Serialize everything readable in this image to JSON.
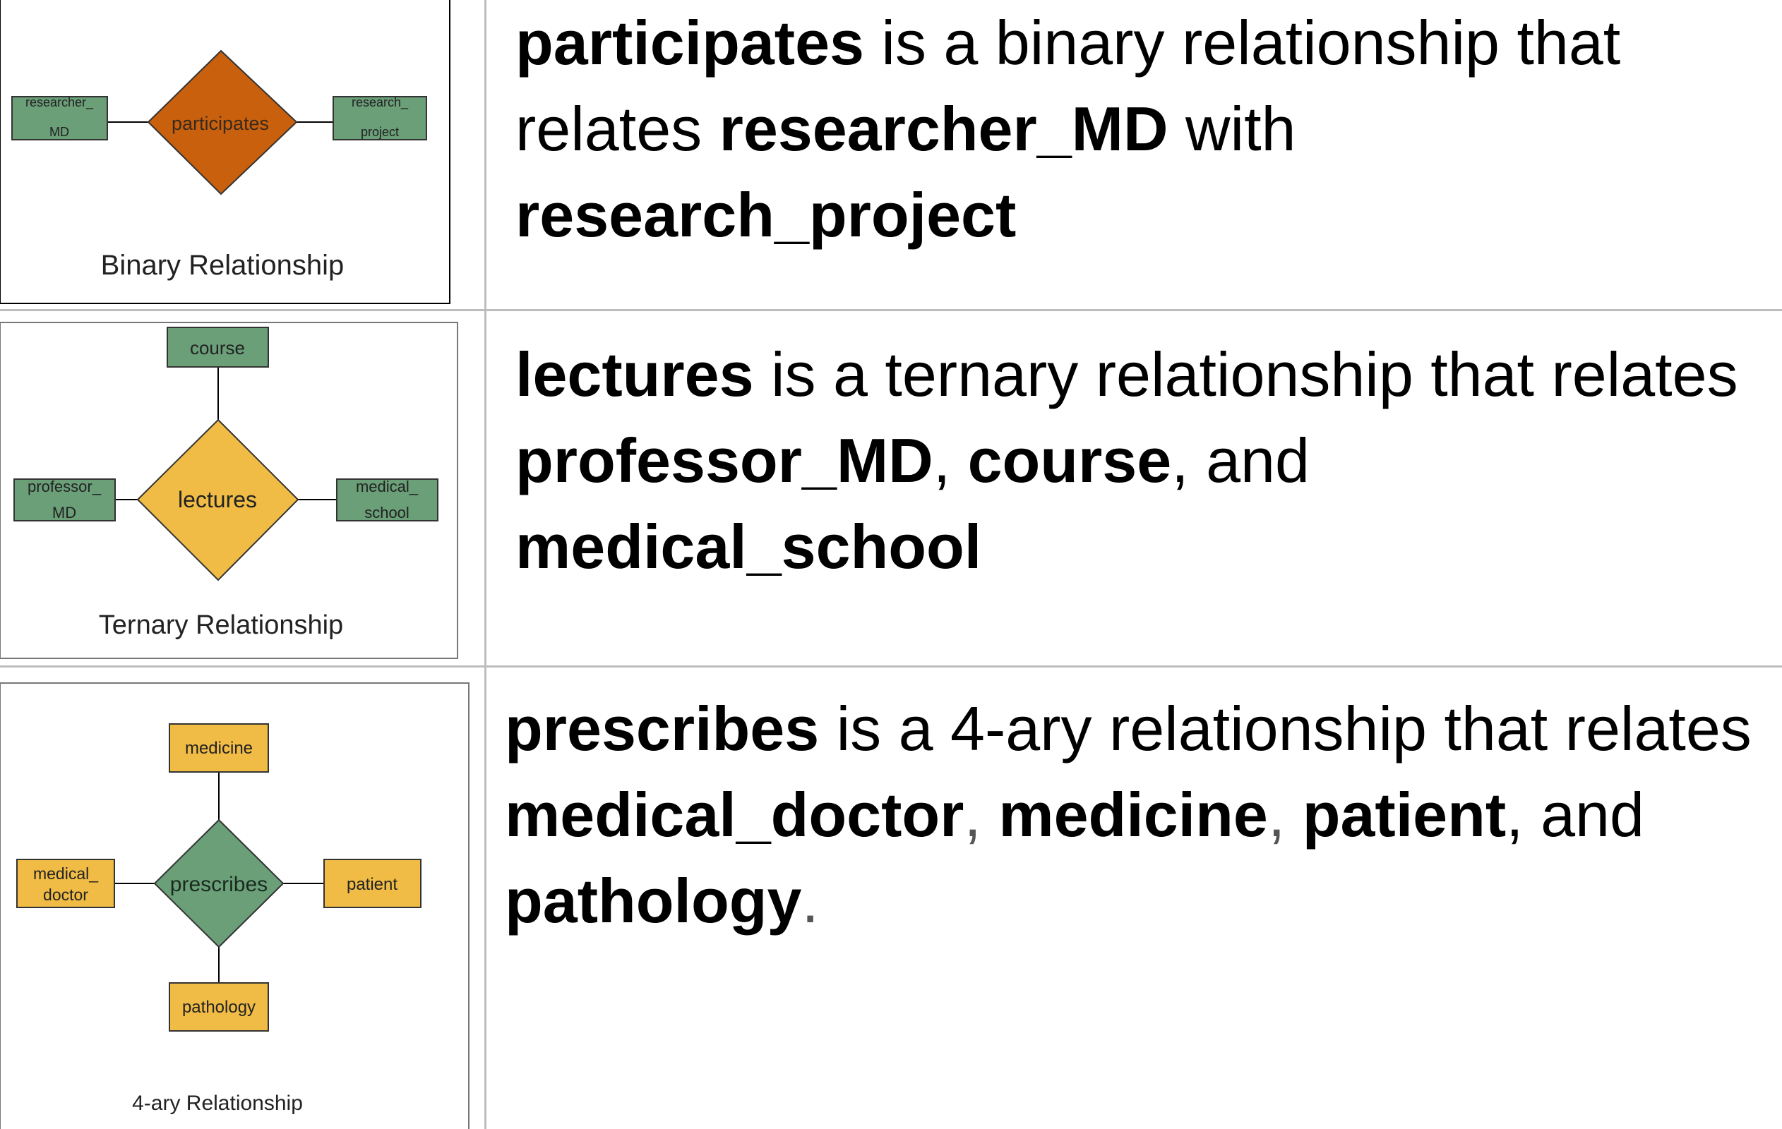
{
  "rows": [
    {
      "diagram": {
        "relationship": "participates",
        "entities": [
          {
            "line1": "researcher_",
            "line2": "MD"
          },
          {
            "line1": "research_",
            "line2": "project"
          }
        ],
        "caption": "Binary Relationship",
        "diamond_color": "#c8600e",
        "entity_color": "#6a9f78"
      },
      "text": {
        "rel": "participates",
        "p1": " is a binary relationship that relates ",
        "e1": "researcher_MD",
        "p2": " with ",
        "e2": "research_project"
      }
    },
    {
      "diagram": {
        "relationship": "lectures",
        "entities": [
          {
            "line1": "course",
            "line2": ""
          },
          {
            "line1": "professor_",
            "line2": "MD"
          },
          {
            "line1": "medical_",
            "line2": "school"
          }
        ],
        "caption": "Ternary Relationship",
        "diamond_color": "#f0bc45",
        "entity_color": "#6a9f78"
      },
      "text": {
        "rel": "lectures",
        "p1": " is a ternary relationship that relates  ",
        "e1": "professor_MD",
        "s1": ", ",
        "e2": "course",
        "s2": ", and ",
        "e3": "medical_school"
      }
    },
    {
      "diagram": {
        "relationship": "prescribes",
        "entities": [
          {
            "line1": "medicine",
            "line2": ""
          },
          {
            "line1": "medical_",
            "line2": "doctor"
          },
          {
            "line1": "patient",
            "line2": ""
          },
          {
            "line1": "pathology",
            "line2": ""
          }
        ],
        "caption": "4-ary Relationship",
        "diamond_color": "#6a9f78",
        "entity_color": "#f0bc45"
      },
      "text": {
        "rel": "prescribes",
        "p1": " is a 4-ary relationship that relates ",
        "e1": "medical_doctor",
        "s1": ",",
        "sp1": " ",
        "e2": "medicine",
        "s2": ",",
        "sp2": " ",
        "e3": "patient",
        "s3": ", and ",
        "e4": "pathology",
        "s4": "."
      }
    }
  ]
}
